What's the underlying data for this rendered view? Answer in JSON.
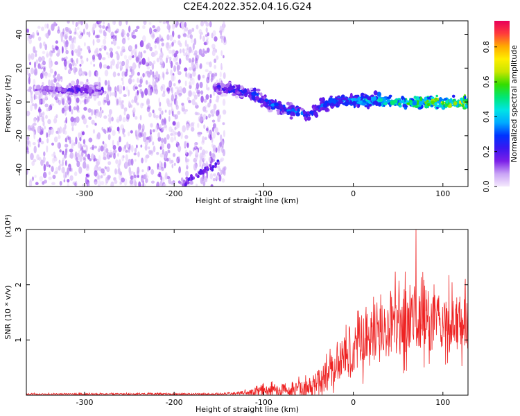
{
  "page_title": "C2E4.2022.352.04.16.G24",
  "chart_data": [
    {
      "type": "heatmap",
      "title": "C2E4.2022.352.04.16.G24",
      "xlabel": "Height of straight line (km)",
      "ylabel": "Frequency (Hz)",
      "xlim": [
        -365,
        128
      ],
      "ylim": [
        -50,
        48
      ],
      "x_ticks": [
        -300,
        -200,
        -100,
        0,
        100
      ],
      "y_ticks": [
        -40,
        -20,
        0,
        20,
        40
      ],
      "colorbar": {
        "label": "Normalized spectral amplitude",
        "range": [
          0.0,
          0.95
        ],
        "ticks": [
          0.0,
          0.2,
          0.4,
          0.6,
          0.8
        ],
        "colormap": [
          "#f5eafd",
          "#c9a3f5",
          "#7b1fe8",
          "#3a17f0",
          "#0033ff",
          "#00aaff",
          "#00e5e5",
          "#00e676",
          "#33dd00",
          "#c8e600",
          "#ffee00",
          "#ffaa00",
          "#ff3b3b",
          "#e8005a"
        ]
      },
      "noise_region": {
        "x_range": [
          -365,
          -143
        ],
        "amplitude_range": [
          0.0,
          0.12
        ]
      },
      "signal_track": [
        {
          "x": -355,
          "f": 7,
          "amp": 0.14
        },
        {
          "x": -330,
          "f": 7,
          "amp": 0.16
        },
        {
          "x": -310,
          "f": 7,
          "amp": 0.22
        },
        {
          "x": -285,
          "f": 7,
          "amp": 0.18
        },
        {
          "x": -150,
          "f": 8,
          "amp": 0.22
        },
        {
          "x": -130,
          "f": 7,
          "amp": 0.28
        },
        {
          "x": -110,
          "f": 4,
          "amp": 0.3
        },
        {
          "x": -90,
          "f": -2,
          "amp": 0.32
        },
        {
          "x": -70,
          "f": -5,
          "amp": 0.33
        },
        {
          "x": -50,
          "f": -8,
          "amp": 0.3
        },
        {
          "x": -40,
          "f": -4,
          "amp": 0.3
        },
        {
          "x": -25,
          "f": 0,
          "amp": 0.34
        },
        {
          "x": 0,
          "f": 1,
          "amp": 0.38
        },
        {
          "x": 25,
          "f": 1,
          "amp": 0.45
        },
        {
          "x": 50,
          "f": 0,
          "amp": 0.52
        },
        {
          "x": 75,
          "f": 0,
          "amp": 0.58
        },
        {
          "x": 100,
          "f": 0,
          "amp": 0.66
        },
        {
          "x": 128,
          "f": 0,
          "amp": 0.66
        }
      ],
      "bands": [
        {
          "x_start": -190,
          "f_start": -48,
          "x_end": -150,
          "f_end": -36
        }
      ]
    },
    {
      "type": "line",
      "xlabel": "Height of straight line (km)",
      "ylabel": "SNR (10 * v/v)",
      "scale_label": "(x10⁴)",
      "xlim": [
        -365,
        128
      ],
      "ylim": [
        0,
        3.0
      ],
      "x_ticks": [
        -300,
        -200,
        -100,
        0,
        100
      ],
      "y_ticks": [
        1,
        2,
        3
      ],
      "color": "#ee2222",
      "envelope": [
        {
          "x": -365,
          "mean": 0.02,
          "spread": 0.02
        },
        {
          "x": -150,
          "mean": 0.02,
          "spread": 0.03
        },
        {
          "x": -125,
          "mean": 0.04,
          "spread": 0.05
        },
        {
          "x": -100,
          "mean": 0.08,
          "spread": 0.15
        },
        {
          "x": -75,
          "mean": 0.1,
          "spread": 0.2
        },
        {
          "x": -50,
          "mean": 0.12,
          "spread": 0.25
        },
        {
          "x": -30,
          "mean": 0.35,
          "spread": 0.45
        },
        {
          "x": -10,
          "mean": 0.7,
          "spread": 0.65
        },
        {
          "x": 10,
          "mean": 1.0,
          "spread": 0.8
        },
        {
          "x": 30,
          "mean": 1.2,
          "spread": 0.9
        },
        {
          "x": 60,
          "mean": 1.35,
          "spread": 1.0
        },
        {
          "x": 90,
          "mean": 1.35,
          "spread": 0.9
        },
        {
          "x": 128,
          "mean": 1.3,
          "spread": 0.8
        }
      ],
      "peak": {
        "x": 70,
        "y": 3.0
      }
    }
  ]
}
